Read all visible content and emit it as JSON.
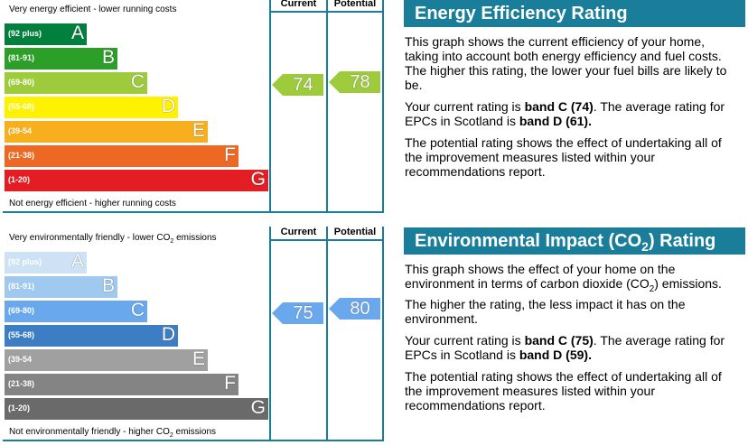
{
  "chart_data": [
    {
      "type": "bar",
      "title": "Energy Efficiency Rating",
      "top_label": "Very energy efficient - lower running costs",
      "bottom_label": "Not energy efficient - higher running costs",
      "columns": [
        "Current",
        "Potential"
      ],
      "bands": [
        {
          "range": "(92 plus)",
          "letter": "A",
          "color": "#007f3d"
        },
        {
          "range": "(81-91)",
          "letter": "B",
          "color": "#2c9f29"
        },
        {
          "range": "(69-80)",
          "letter": "C",
          "color": "#9dcb3c"
        },
        {
          "range": "(55-68)",
          "letter": "D",
          "color": "#fff200"
        },
        {
          "range": "(39-54",
          "letter": "E",
          "color": "#f7af1d"
        },
        {
          "range": "(21-38)",
          "letter": "F",
          "color": "#ed6823"
        },
        {
          "range": "(1-20)",
          "letter": "G",
          "color": "#e31d23"
        }
      ],
      "current": {
        "value": "74",
        "band": "C",
        "color": "#9dcb3c"
      },
      "potential": {
        "value": "78",
        "band": "C",
        "color": "#9dcb3c"
      }
    },
    {
      "type": "bar",
      "title": "Environmental Impact (CO2) Rating",
      "top_label": "Very environmentally friendly - lower CO2 emissions",
      "bottom_label": "Not environmentally friendly - higher CO2 emissions",
      "columns": [
        "Current",
        "Potential"
      ],
      "bands": [
        {
          "range": "(92 plus)",
          "letter": "A",
          "color": "#cde3f5"
        },
        {
          "range": "(81-91)",
          "letter": "B",
          "color": "#9fc9ee"
        },
        {
          "range": "(69-80)",
          "letter": "C",
          "color": "#6aa8ee"
        },
        {
          "range": "(55-68)",
          "letter": "D",
          "color": "#3d7dc3"
        },
        {
          "range": "(39-54",
          "letter": "E",
          "color": "#a0a0a0"
        },
        {
          "range": "(21-38)",
          "letter": "F",
          "color": "#848484"
        },
        {
          "range": "(1-20)",
          "letter": "G",
          "color": "#6a6a6a"
        }
      ],
      "current": {
        "value": "75",
        "band": "C",
        "color": "#6aa8ee"
      },
      "potential": {
        "value": "80",
        "band": "C",
        "color": "#6aa8ee"
      }
    }
  ],
  "energy_info": {
    "title": "Energy Efficiency Rating",
    "p1": "This graph shows the current efficiency of your home, taking into account both energy efficiency and fuel costs. The higher this rating, the lower your fuel bills are likely to be.",
    "p2_prefix": "Your current rating is ",
    "p2_bold1": "band C (74)",
    "p2_mid": ". The average rating for EPCs in Scotland is ",
    "p2_bold2": "band D (61).",
    "p3": "The potential rating shows the effect of undertaking all of the improvement measures listed within your recommendations report."
  },
  "env_info": {
    "title_prefix": "Environmental Impact (CO",
    "title_sub": "2",
    "title_suffix": ") Rating",
    "p1_prefix": "This graph shows the effect of your home on the environment in terms of carbon dioxide (CO",
    "p1_sub": "2",
    "p1_suffix": ") emissions. The higher the rating, the less impact it has on the environment.",
    "p2_prefix": "Your current rating is ",
    "p2_bold1": "band C (75)",
    "p2_mid": ". The average rating for EPCs in Scotland is ",
    "p2_bold2": "band D (59).",
    "p3": "The potential rating shows the effect of undertaking all of the improvement measures listed within your recommendations report."
  }
}
